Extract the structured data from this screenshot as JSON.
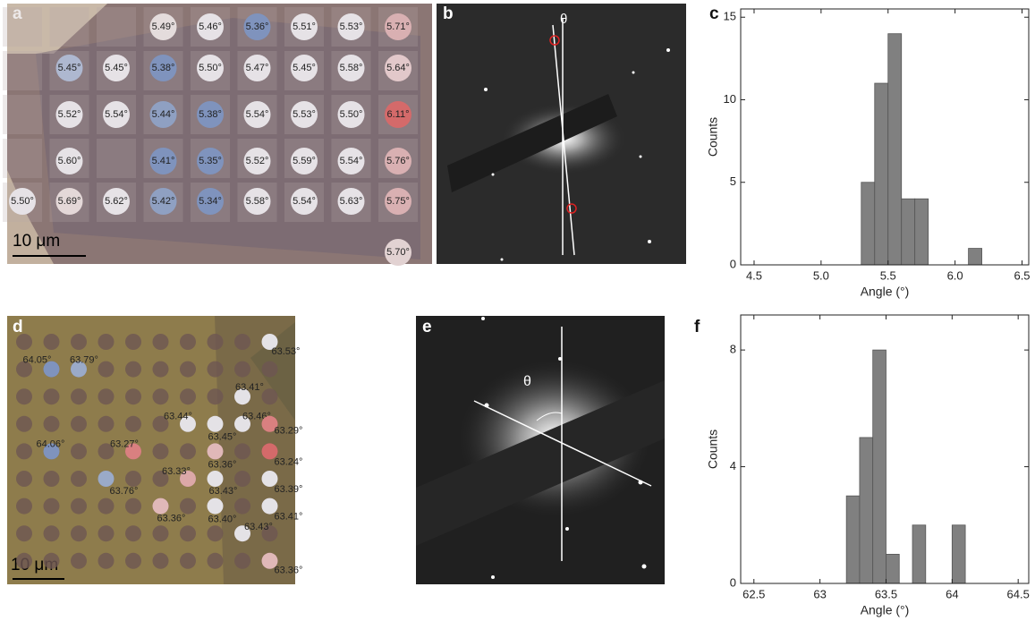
{
  "panel_labels": [
    "a",
    "b",
    "c",
    "d",
    "e",
    "f"
  ],
  "micrograph_a": {
    "scale_bar": "10 μm",
    "rows": [
      [
        null,
        null,
        null,
        {
          "label": "5.49°",
          "color": "#e4dcdc"
        },
        {
          "label": "5.46°",
          "color": "#e6e2e6"
        },
        {
          "label": "5.36°",
          "color": "#7f93bd"
        },
        {
          "label": "5.51°",
          "color": "#e6e2e6"
        },
        {
          "label": "5.53°",
          "color": "#e6e2e6"
        },
        {
          "label": "5.71°",
          "color": "#d9b0b2"
        }
      ],
      [
        null,
        {
          "label": "5.45°",
          "color": "#aeb8d0"
        },
        {
          "label": "5.45°",
          "color": "#e6e2e6"
        },
        {
          "label": "5.38°",
          "color": "#7f93bd"
        },
        {
          "label": "5.50°",
          "color": "#e6e2e6"
        },
        {
          "label": "5.47°",
          "color": "#e6e2e6"
        },
        {
          "label": "5.45°",
          "color": "#e6e2e6"
        },
        {
          "label": "5.58°",
          "color": "#e6e2e6"
        },
        {
          "label": "5.64°",
          "color": "#e2c8ca"
        }
      ],
      [
        null,
        {
          "label": "5.52°",
          "color": "#e6e2e6"
        },
        {
          "label": "5.54°",
          "color": "#e6e2e6"
        },
        {
          "label": "5.44°",
          "color": "#8fa0c2"
        },
        {
          "label": "5.38°",
          "color": "#7f93bd"
        },
        {
          "label": "5.54°",
          "color": "#e6e2e6"
        },
        {
          "label": "5.53°",
          "color": "#e6e2e6"
        },
        {
          "label": "5.50°",
          "color": "#e6e2e6"
        },
        {
          "label": "6.11°",
          "color": "#d46a6a"
        }
      ],
      [
        null,
        {
          "label": "5.60°",
          "color": "#e6e2e6"
        },
        null,
        {
          "label": "5.41°",
          "color": "#7f93bd"
        },
        {
          "label": "5.35°",
          "color": "#7f93bd"
        },
        {
          "label": "5.52°",
          "color": "#e6e2e6"
        },
        {
          "label": "5.59°",
          "color": "#e6e2e6"
        },
        {
          "label": "5.54°",
          "color": "#e6e2e6"
        },
        {
          "label": "5.76°",
          "color": "#d9b0b2"
        }
      ],
      [
        {
          "label": "5.50°",
          "color": "#e6e2e6"
        },
        {
          "label": "5.69°",
          "color": "#e4d8d8"
        },
        {
          "label": "5.62°",
          "color": "#e6e2e6"
        },
        {
          "label": "5.42°",
          "color": "#8fa0c2"
        },
        {
          "label": "5.34°",
          "color": "#7f93bd"
        },
        {
          "label": "5.58°",
          "color": "#e6e2e6"
        },
        {
          "label": "5.54°",
          "color": "#e6e2e6"
        },
        {
          "label": "5.63°",
          "color": "#e6e2e6"
        },
        {
          "label": "5.75°",
          "color": "#d9b0b2"
        }
      ],
      [
        null,
        null,
        null,
        null,
        null,
        null,
        null,
        null,
        {
          "label": "5.70°",
          "color": "#e2d2d2"
        }
      ]
    ]
  },
  "diffraction_b": {
    "angle_symbol": "θ"
  },
  "micrograph_d": {
    "scale_bar": "10 μm",
    "rows": [
      [
        null,
        null,
        null,
        null,
        null,
        null,
        null,
        null,
        null,
        {
          "label": "63.53°",
          "color": "#e4e2e6"
        }
      ],
      [
        null,
        {
          "label": "64.05°",
          "color": "#7f93bd"
        },
        {
          "label": "63.79°",
          "color": "#9aaac8"
        },
        null,
        null,
        null,
        null,
        null,
        null,
        null
      ],
      [
        null,
        null,
        null,
        null,
        null,
        null,
        null,
        null,
        {
          "label": "63.41°",
          "color": "#e4e2e6"
        },
        null
      ],
      [
        null,
        null,
        null,
        null,
        null,
        null,
        {
          "label": "63.44°",
          "color": "#e4e2e6"
        },
        {
          "label": "63.45°",
          "color": "#e4e2e6"
        },
        {
          "label": "63.46°",
          "color": "#e4e2e6"
        },
        {
          "label": "63.29°",
          "color": "#d98080"
        }
      ],
      [
        null,
        {
          "label": "64.06°",
          "color": "#7f93bd"
        },
        null,
        null,
        {
          "label": "63.27°",
          "color": "#d98080"
        },
        null,
        null,
        {
          "label": "63.36°",
          "color": "#e0b8b8"
        },
        null,
        {
          "label": "63.24°",
          "color": "#d46a6a"
        }
      ],
      [
        null,
        null,
        null,
        {
          "label": "63.76°",
          "color": "#9aaac8"
        },
        null,
        null,
        {
          "label": "63.33°",
          "color": "#dca8a8"
        },
        {
          "label": "63.43°",
          "color": "#e4e2e6"
        },
        null,
        {
          "label": "63.39°",
          "color": "#e4e2e6"
        }
      ],
      [
        null,
        null,
        null,
        null,
        null,
        {
          "label": "63.36°",
          "color": "#e0b8b8"
        },
        null,
        {
          "label": "63.40°",
          "color": "#e4e2e6"
        },
        null,
        {
          "label": "63.41°",
          "color": "#e4e2e6"
        }
      ],
      [
        null,
        null,
        null,
        null,
        null,
        null,
        null,
        null,
        {
          "label": "63.43°",
          "color": "#e4e2e6"
        },
        null
      ],
      [
        null,
        null,
        null,
        null,
        null,
        null,
        null,
        null,
        null,
        {
          "label": "63.36°",
          "color": "#e0b8b8"
        }
      ]
    ]
  },
  "diffraction_e": {
    "angle_symbol": "θ"
  },
  "chart_data": [
    {
      "type": "histogram",
      "xlabel": "Angle (°)",
      "ylabel": "Counts",
      "color": "#808080",
      "bins": [
        5.3,
        5.4,
        5.5,
        5.6,
        5.7,
        5.8,
        5.9,
        6.0,
        6.1,
        6.2
      ],
      "values": [
        5,
        11,
        14,
        4,
        4,
        0,
        0,
        0,
        1
      ],
      "xlim": [
        4.4,
        6.55
      ],
      "ylim": [
        0,
        15.5
      ],
      "xticks": [
        4.5,
        {
          "value": 5,
          "label": "5.0"
        },
        5.5,
        {
          "value": 6,
          "label": "6.0"
        },
        6.5
      ],
      "yticks": [
        0,
        5,
        10,
        15
      ]
    },
    {
      "type": "histogram",
      "xlabel": "Angle (°)",
      "ylabel": "Counts",
      "color": "#808080",
      "bins": [
        63.2,
        63.3,
        63.4,
        63.5,
        63.6,
        63.7,
        63.8,
        63.9,
        64.0,
        64.1
      ],
      "values": [
        3,
        5,
        8,
        1,
        0,
        2,
        0,
        0,
        2
      ],
      "xlim": [
        62.4,
        64.58
      ],
      "ylim": [
        0,
        9.2
      ],
      "xticks": [
        62.5,
        63,
        63.5,
        64,
        64.5
      ],
      "yticks": [
        0,
        4,
        8
      ]
    }
  ]
}
